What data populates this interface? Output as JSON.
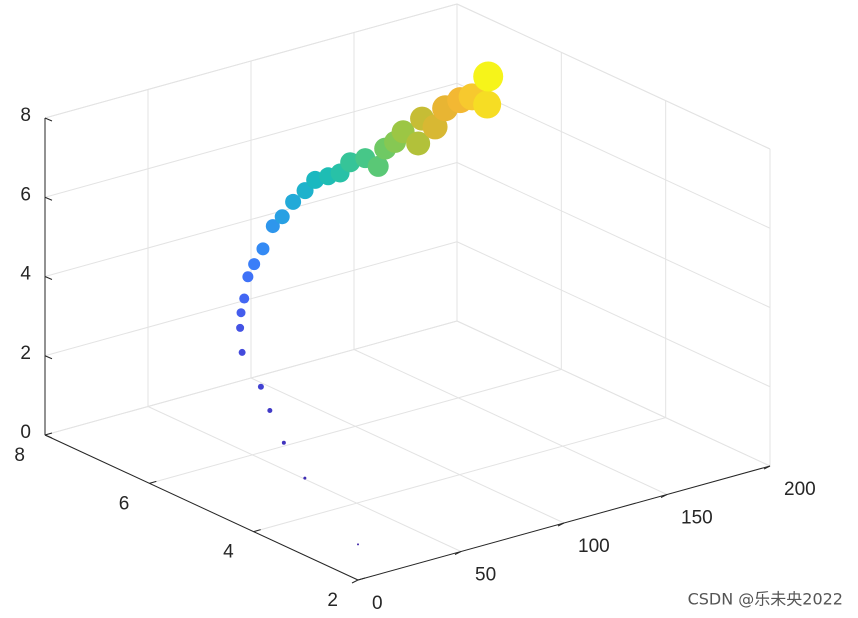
{
  "chart_data": {
    "type": "scatter3",
    "series": [
      {
        "x": [
          0,
          1.3,
          2.5,
          3.8,
          6.3,
          10.1,
          15.2,
          20.2,
          25.3,
          32.9,
          40.5,
          50.6,
          60.7,
          64.5,
          69.8,
          75.6,
          80.5,
          86.8,
          92.6,
          97.5,
          104.8,
          111.1,
          114.5,
          119.3,
          123.2,
          130.5,
          132.4,
          138.7,
          143.6,
          150.9,
          156.7,
          164,
          164.5
        ],
        "y": [
          2,
          3.07,
          3.52,
          3.84,
          4.11,
          4.62,
          4.86,
          5.04,
          5.18,
          5.41,
          5.59,
          5.82,
          6.03,
          6,
          6,
          6,
          6,
          6,
          6,
          6,
          6,
          6,
          6,
          6,
          6,
          6,
          6,
          6,
          6,
          6,
          6,
          6,
          6
        ],
        "z": [
          0.9,
          1.9,
          2.5,
          3.1,
          3.5,
          4.0,
          4.4,
          4.6,
          4.8,
          5.1,
          5.2,
          5.3,
          5.6,
          5.8,
          6.1,
          6.3,
          6.5,
          6.5,
          6.5,
          6.7,
          6.7,
          6.4,
          6.8,
          6.9,
          7.1,
          6.7,
          7.3,
          7.0,
          7.4,
          7.5,
          7.5,
          7.2,
          7.9
        ],
        "sizes": [
          1,
          1.5,
          2,
          2.5,
          3,
          3.5,
          4,
          4.5,
          5,
          5.5,
          6,
          6.5,
          7,
          7.5,
          8,
          8.5,
          9,
          9,
          9.5,
          10,
          10,
          10.5,
          11,
          11,
          11.5,
          12,
          12,
          12.5,
          13,
          13,
          13.5,
          14,
          15
        ],
        "colors": [
          "#3e26a8",
          "#3f2db3",
          "#4033bd",
          "#413ac7",
          "#4242d2",
          "#434adc",
          "#4453e4",
          "#445ded",
          "#4367f3",
          "#3f72f7",
          "#3a7ef8",
          "#348af4",
          "#2e96ec",
          "#28a0e3",
          "#22aad8",
          "#1eb2cc",
          "#1ab8c0",
          "#1ebdb4",
          "#28c1a7",
          "#36c498",
          "#47c788",
          "#5ac876",
          "#6fc964",
          "#86c853",
          "#9cc644",
          "#b2c13a",
          "#c6bd35",
          "#d8b833",
          "#e8b533",
          "#f3b833",
          "#f7c92e",
          "#f6dd24",
          "#f6f41a"
        ]
      }
    ],
    "xlim": [
      0,
      200
    ],
    "ylim": [
      2,
      8
    ],
    "zlim": [
      0,
      8
    ],
    "xticks": [
      0,
      50,
      100,
      150,
      200
    ],
    "yticks": [
      2,
      4,
      6,
      8
    ],
    "zticks": [
      0,
      2,
      4,
      6,
      8
    ],
    "grid": true
  },
  "watermark": "CSDN @乐未央2022"
}
